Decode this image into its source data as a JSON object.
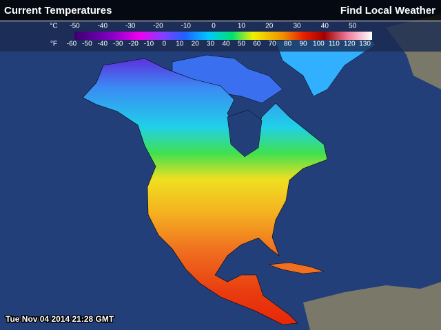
{
  "header": {
    "title": "Current Temperatures",
    "link": "Find Local Weather"
  },
  "legend": {
    "celsius_unit": "°C",
    "celsius_ticks": [
      -50,
      -40,
      -30,
      -20,
      -10,
      0,
      10,
      20,
      30,
      40,
      50
    ],
    "fahrenheit_unit": "°F",
    "fahrenheit_ticks": [
      -60,
      -50,
      -40,
      -30,
      -20,
      -10,
      0,
      10,
      20,
      30,
      40,
      50,
      60,
      70,
      80,
      90,
      100,
      110,
      120,
      130
    ]
  },
  "footer": {
    "timestamp": "Tue Nov 04 2014 21:28 GMT"
  }
}
